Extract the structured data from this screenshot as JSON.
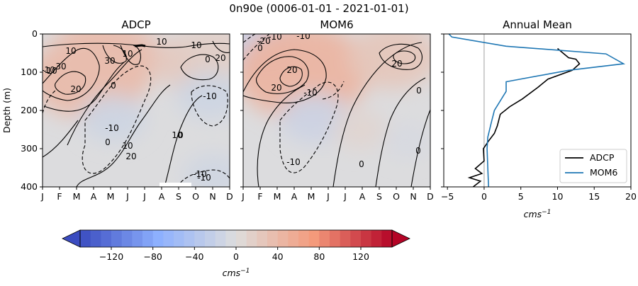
{
  "figure": {
    "suptitle": "0n90e (0006-01-01 - 2021-01-01)"
  },
  "chart_data": [
    {
      "type": "heatmap",
      "title": "ADCP",
      "ylabel": "Depth (m)",
      "months": [
        "J",
        "F",
        "M",
        "A",
        "M",
        "J",
        "J",
        "A",
        "S",
        "O",
        "N",
        "D"
      ],
      "depth_ticks": [
        0,
        100,
        200,
        300,
        400
      ],
      "ylim": [
        400,
        0
      ],
      "contour_labels": [
        "10",
        "30",
        "20",
        "-10",
        "0",
        "30",
        "10",
        "-10",
        "-10",
        "-10",
        "0",
        "10",
        "20",
        "10",
        "10",
        "20",
        "-10",
        "0",
        "10",
        "0",
        "-10"
      ],
      "features": [
        {
          "month": 3.0,
          "depth": 112,
          "value": 38
        },
        {
          "month": 4.0,
          "depth": 60,
          "value": 35
        },
        {
          "month": 4.5,
          "depth": 220,
          "value": -14
        },
        {
          "month": 9.8,
          "depth": 75,
          "value": 22
        },
        {
          "month": 10.7,
          "depth": 160,
          "value": -14
        },
        {
          "month": 11.0,
          "depth": 370,
          "value": -12
        },
        {
          "month": 11.2,
          "depth": 40,
          "value": 15
        }
      ]
    },
    {
      "type": "heatmap",
      "title": "MOM6",
      "months": [
        "J",
        "F",
        "M",
        "A",
        "M",
        "J",
        "J",
        "A",
        "S",
        "O",
        "N",
        "D"
      ],
      "depth_ticks": [
        0,
        100,
        200,
        300,
        400
      ],
      "ylim": [
        400,
        0
      ],
      "contour_labels": [
        "-20",
        "-10",
        "0",
        "-10",
        "20",
        "20",
        "-10",
        "20",
        "0",
        "-10",
        "0",
        "0"
      ],
      "features": [
        {
          "month": 1.2,
          "depth": 30,
          "value": -22
        },
        {
          "month": 3.8,
          "depth": 100,
          "value": 45
        },
        {
          "month": 4.6,
          "depth": 220,
          "value": -16
        },
        {
          "month": 9.6,
          "depth": 60,
          "value": 25
        },
        {
          "month": 7.5,
          "depth": 250,
          "value": 9
        },
        {
          "month": 10.5,
          "depth": 280,
          "value": -6
        }
      ]
    },
    {
      "type": "line",
      "title": "Annual Mean",
      "xlabel": "cms",
      "xlabel_sup": "−1",
      "xlim": [
        -5.5,
        20
      ],
      "xticks": [
        "−5",
        "0",
        "5",
        "10",
        "15",
        "20"
      ],
      "xtick_values": [
        -5,
        0,
        5,
        10,
        15,
        20
      ],
      "ylim": [
        400,
        0
      ],
      "legend_position": "lower right",
      "series": [
        {
          "name": "ADCP",
          "color": "#000000",
          "points": [
            [
              -1.5,
              400
            ],
            [
              -0.5,
              385
            ],
            [
              -2,
              376
            ],
            [
              -0.3,
              365
            ],
            [
              -1.2,
              352
            ],
            [
              0,
              332
            ],
            [
              -0.1,
              300
            ],
            [
              0.6,
              280
            ],
            [
              1.4,
              260
            ],
            [
              1.8,
              240
            ],
            [
              2.2,
              210
            ],
            [
              3.5,
              190
            ],
            [
              5.2,
              170
            ],
            [
              7.3,
              140
            ],
            [
              8.7,
              118
            ],
            [
              12,
              95
            ],
            [
              13,
              78
            ],
            [
              12.5,
              66
            ],
            [
              11.5,
              62
            ],
            [
              10,
              38
            ]
          ]
        },
        {
          "name": "MOM6",
          "color": "#1f77b4",
          "points": [
            [
              0.6,
              400
            ],
            [
              0.5,
              350
            ],
            [
              0.4,
              300
            ],
            [
              0.5,
              270
            ],
            [
              1.0,
              230
            ],
            [
              1.4,
              200
            ],
            [
              3.0,
              150
            ],
            [
              3.0,
              125
            ],
            [
              11.5,
              95
            ],
            [
              19.0,
              78
            ],
            [
              16.6,
              52
            ],
            [
              3.0,
              32
            ],
            [
              -4.4,
              8
            ],
            [
              -4.8,
              0
            ]
          ]
        }
      ]
    },
    {
      "type": "colorbar",
      "label": "cms",
      "label_sup": "−1",
      "range": [
        -150,
        150
      ],
      "ticks": [
        "−120",
        "−80",
        "−40",
        "0",
        "40",
        "80",
        "120"
      ],
      "tick_values": [
        -120,
        -80,
        -40,
        0,
        40,
        80,
        120
      ],
      "extend": "both"
    }
  ]
}
